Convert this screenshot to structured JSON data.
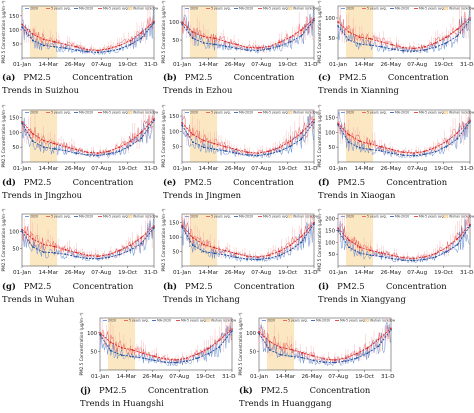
{
  "common": {
    "ylabel": "PM2.5 Concentration (μg/m⁻³)",
    "x_ticks": [
      "01-Jan",
      "14-Mar",
      "26-May",
      "07-Aug",
      "19-Oct",
      "31-Dec"
    ],
    "legend": [
      "2020",
      "5 years avg.",
      "MA-2020",
      "MA-5 years avg.",
      "Wuhan lockdown"
    ],
    "colors": {
      "s2020": "#4a7fcf",
      "avg5": "#e8474a",
      "ma2020": "#1f4fa0",
      "ma5": "#d62728",
      "lockdown": "#fbe3b8"
    },
    "lockdown_days": [
      23,
      98
    ]
  },
  "chart_data": [
    {
      "type": "line",
      "label": "(a)",
      "caption_words": [
        "PM2.5",
        "Concentration"
      ],
      "caption_line2": "Trends in Suizhou",
      "yticks": [
        50,
        100,
        150
      ],
      "ylim": [
        0,
        185
      ],
      "x": [
        1,
        31,
        61,
        91,
        121,
        151,
        181,
        211,
        241,
        271,
        301,
        331,
        366
      ],
      "series": [
        {
          "name": "2020",
          "values": [
            110,
            62,
            45,
            40,
            35,
            28,
            22,
            20,
            24,
            32,
            48,
            70,
            125
          ]
        },
        {
          "name": "5 years avg.",
          "values": [
            120,
            85,
            66,
            58,
            48,
            40,
            30,
            27,
            33,
            45,
            62,
            90,
            130
          ]
        }
      ]
    },
    {
      "type": "line",
      "label": "(b)",
      "caption_words": [
        "PM2.5",
        "Concentration"
      ],
      "caption_line2": "Trends in Ezhou",
      "yticks": [
        50,
        100
      ],
      "ylim": [
        0,
        145
      ],
      "x": [
        1,
        31,
        61,
        91,
        121,
        151,
        181,
        211,
        241,
        271,
        301,
        331,
        366
      ],
      "series": [
        {
          "name": "2020",
          "values": [
            95,
            55,
            42,
            38,
            33,
            27,
            22,
            21,
            25,
            33,
            45,
            62,
            105
          ]
        },
        {
          "name": "5 years avg.",
          "values": [
            100,
            72,
            60,
            55,
            46,
            38,
            30,
            28,
            32,
            44,
            58,
            78,
            110
          ]
        }
      ]
    },
    {
      "type": "line",
      "label": "(c)",
      "caption_words": [
        "PM2.5",
        "Concentration"
      ],
      "caption_line2": "Trends in Xianning",
      "yticks": [
        50,
        100
      ],
      "ylim": [
        0,
        130
      ],
      "x": [
        1,
        31,
        61,
        91,
        121,
        151,
        181,
        211,
        241,
        271,
        301,
        331,
        366
      ],
      "series": [
        {
          "name": "2020",
          "values": [
            80,
            45,
            35,
            32,
            28,
            22,
            18,
            17,
            20,
            27,
            38,
            55,
            95
          ]
        },
        {
          "name": "5 years avg.",
          "values": [
            90,
            65,
            52,
            48,
            40,
            33,
            26,
            24,
            28,
            38,
            52,
            72,
            100
          ]
        }
      ]
    },
    {
      "type": "line",
      "label": "(d)",
      "caption_words": [
        "PM2.5",
        "Concentration"
      ],
      "caption_line2": "Trends in Jingzhou",
      "yticks": [
        50,
        100,
        150
      ],
      "ylim": [
        0,
        175
      ],
      "x": [
        1,
        31,
        61,
        91,
        121,
        151,
        181,
        211,
        241,
        271,
        301,
        331,
        366
      ],
      "series": [
        {
          "name": "2020",
          "values": [
            130,
            70,
            50,
            44,
            38,
            30,
            24,
            22,
            27,
            36,
            55,
            80,
            140
          ]
        },
        {
          "name": "5 years avg.",
          "values": [
            135,
            95,
            72,
            62,
            52,
            42,
            33,
            30,
            36,
            50,
            70,
            100,
            145
          ]
        }
      ]
    },
    {
      "type": "line",
      "label": "(e)",
      "caption_words": [
        "PM2.5",
        "Concentration"
      ],
      "caption_line2": "Trends in Jingmen",
      "yticks": [
        50,
        100,
        150
      ],
      "ylim": [
        0,
        170
      ],
      "x": [
        1,
        31,
        61,
        91,
        121,
        151,
        181,
        211,
        241,
        271,
        301,
        331,
        366
      ],
      "series": [
        {
          "name": "2020",
          "values": [
            120,
            65,
            48,
            42,
            36,
            29,
            23,
            21,
            26,
            35,
            52,
            75,
            130
          ]
        },
        {
          "name": "5 years avg.",
          "values": [
            128,
            90,
            70,
            60,
            50,
            41,
            32,
            29,
            35,
            48,
            68,
            95,
            138
          ]
        }
      ]
    },
    {
      "type": "line",
      "label": "(f)",
      "caption_words": [
        "PM2.5",
        "Concentration"
      ],
      "caption_line2": "Trends in Xiaogan",
      "yticks": [
        50,
        100,
        150
      ],
      "ylim": [
        0,
        175
      ],
      "x": [
        1,
        31,
        61,
        91,
        121,
        151,
        181,
        211,
        241,
        271,
        301,
        331,
        366
      ],
      "series": [
        {
          "name": "2020",
          "values": [
            125,
            66,
            48,
            42,
            37,
            29,
            23,
            21,
            26,
            35,
            52,
            78,
            135
          ]
        },
        {
          "name": "5 years avg.",
          "values": [
            130,
            92,
            70,
            61,
            51,
            42,
            33,
            30,
            36,
            49,
            69,
            98,
            140
          ]
        }
      ]
    },
    {
      "type": "line",
      "label": "(g)",
      "caption_words": [
        "PM2.5",
        "Concentration"
      ],
      "caption_line2": "Trends in Wuhan",
      "yticks": [
        50,
        100
      ],
      "ylim": [
        0,
        150
      ],
      "x": [
        1,
        31,
        61,
        91,
        121,
        151,
        181,
        211,
        241,
        271,
        301,
        331,
        366
      ],
      "series": [
        {
          "name": "2020",
          "values": [
            100,
            55,
            40,
            38,
            34,
            27,
            22,
            21,
            25,
            33,
            46,
            65,
            110
          ]
        },
        {
          "name": "5 years avg.",
          "values": [
            105,
            78,
            62,
            56,
            47,
            39,
            31,
            28,
            33,
            45,
            60,
            82,
            115
          ]
        }
      ]
    },
    {
      "type": "line",
      "label": "(h)",
      "caption_words": [
        "PM2.5",
        "Concentration"
      ],
      "caption_line2": "Trends in Yichang",
      "yticks": [
        50,
        100,
        150
      ],
      "ylim": [
        0,
        180
      ],
      "x": [
        1,
        31,
        61,
        91,
        121,
        151,
        181,
        211,
        241,
        271,
        301,
        331,
        366
      ],
      "series": [
        {
          "name": "2020",
          "values": [
            135,
            72,
            50,
            44,
            38,
            30,
            24,
            22,
            27,
            36,
            55,
            82,
            145
          ]
        },
        {
          "name": "5 years avg.",
          "values": [
            140,
            98,
            74,
            63,
            53,
            43,
            34,
            31,
            37,
            51,
            72,
            102,
            150
          ]
        }
      ]
    },
    {
      "type": "line",
      "label": "(i)",
      "caption_words": [
        "PM2.5",
        "Concentration"
      ],
      "caption_line2": "Trends in Xiangyang",
      "yticks": [
        50,
        100,
        150,
        200
      ],
      "ylim": [
        0,
        220
      ],
      "x": [
        1,
        31,
        61,
        91,
        121,
        151,
        181,
        211,
        241,
        271,
        301,
        331,
        366
      ],
      "series": [
        {
          "name": "2020",
          "values": [
            150,
            80,
            55,
            46,
            40,
            31,
            25,
            23,
            28,
            38,
            60,
            90,
            170
          ]
        },
        {
          "name": "5 years avg.",
          "values": [
            160,
            110,
            80,
            66,
            55,
            45,
            35,
            32,
            38,
            53,
            78,
            115,
            175
          ]
        }
      ]
    },
    {
      "type": "line",
      "label": "(j)",
      "caption_words": [
        "PM2.5",
        "Concentration"
      ],
      "caption_line2": "Trends in Huangshi",
      "yticks": [
        50,
        100
      ],
      "ylim": [
        0,
        140
      ],
      "x": [
        1,
        31,
        61,
        91,
        121,
        151,
        181,
        211,
        241,
        271,
        301,
        331,
        366
      ],
      "series": [
        {
          "name": "2020",
          "values": [
            95,
            52,
            40,
            36,
            32,
            26,
            21,
            20,
            24,
            32,
            44,
            62,
            105
          ]
        },
        {
          "name": "5 years avg.",
          "values": [
            100,
            74,
            60,
            54,
            45,
            37,
            30,
            27,
            32,
            43,
            58,
            80,
            110
          ]
        }
      ]
    },
    {
      "type": "line",
      "label": "(k)",
      "caption_words": [
        "PM2.5",
        "Concentration"
      ],
      "caption_line2": "Trends in Huanggang",
      "yticks": [
        50,
        100
      ],
      "ylim": [
        0,
        140
      ],
      "x": [
        1,
        31,
        61,
        91,
        121,
        151,
        181,
        211,
        241,
        271,
        301,
        331,
        366
      ],
      "series": [
        {
          "name": "2020",
          "values": [
            98,
            54,
            41,
            37,
            33,
            26,
            21,
            20,
            24,
            32,
            45,
            64,
            108
          ]
        },
        {
          "name": "5 years avg.",
          "values": [
            103,
            76,
            61,
            55,
            46,
            38,
            30,
            27,
            32,
            44,
            59,
            82,
            112
          ]
        }
      ]
    }
  ]
}
